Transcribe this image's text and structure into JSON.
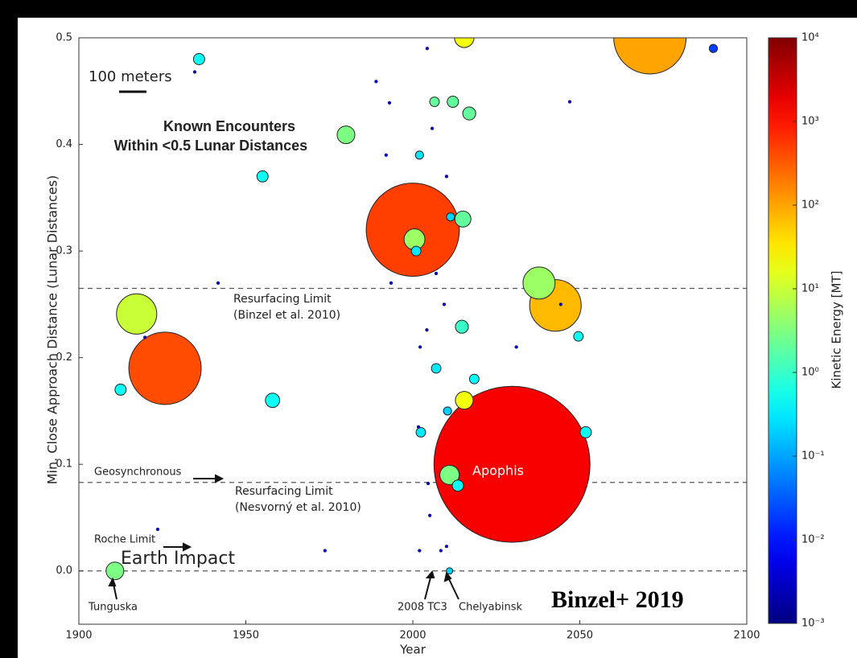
{
  "chart_data": {
    "type": "scatter",
    "x_label": "Year",
    "y_label": "Min. Close Approach Distance (Lunar Distances)",
    "colorbar_label": "Kinetic Energy [MT]",
    "xlim": [
      1900,
      2100
    ],
    "xticks": [
      1900,
      1950,
      2000,
      2050,
      2100
    ],
    "ylim": [
      -0.05,
      0.5
    ],
    "yticks": [
      {
        "value": 0,
        "label": "0.0"
      },
      0.1,
      0.2,
      0.3,
      0.4,
      0.5
    ],
    "clim": [
      0.001,
      10000
    ],
    "colorscale": "jet",
    "cticks": [
      {
        "value": 0.001,
        "label": "10⁻³"
      },
      {
        "value": 0.01,
        "label": "10⁻²"
      },
      {
        "value": 0.1,
        "label": "10⁻¹"
      },
      {
        "value": 1,
        "label": "10⁰"
      },
      {
        "value": 10,
        "label": "10¹"
      },
      {
        "value": 100,
        "label": "10²"
      },
      {
        "value": 1000,
        "label": "10³"
      },
      {
        "value": 10000,
        "label": "10⁴"
      }
    ],
    "hlines": [
      0.265,
      0.083,
      0
    ],
    "annotations": [
      "100 meters",
      "Known Encounters",
      "Within <0.5 Lunar Distances",
      "Resurfacing Limit",
      "(Binzel et al. 2010)",
      "Geosynchronous",
      "Resurfacing Limit",
      "(Nesvorný  et al. 2010)",
      "Roche Limit",
      "Earth Impact",
      "Tunguska",
      "2008 TC3",
      "Chelyabinsk",
      "Apophis",
      "Binzel+ 2019"
    ],
    "series": [
      {
        "x": [
          2029.7,
          2000,
          1925.8,
          2071,
          2042.7,
          2037.8,
          1917.3,
          2000.5,
          2015.4,
          2015.4,
          2011,
          1980,
          1910.8,
          2015,
          2012,
          2016.9,
          2006.5,
          1958,
          1912.5,
          1936,
          1955,
          2051.8,
          2002.4,
          2014.7,
          2018.4,
          2013.5,
          2049.6,
          2001,
          2011,
          2090,
          2007,
          2010.4,
          2002,
          2011.3,
          1934.7,
          1941.7,
          1923.6,
          1919.8,
          1973.7,
          1989,
          1993,
          1992,
          1993.5,
          2004.3,
          2044.3,
          2047,
          2031,
          2002,
          2008.4,
          2002.2,
          2004.2,
          2007,
          2009.4,
          2010.1,
          2005.8,
          2001.7,
          2004.6,
          2005.1,
          2010.1
        ],
        "values": [
          0.1,
          0.32,
          0.19,
          0.5,
          0.249,
          0.27,
          0.241,
          0.311,
          0.16,
          0.5,
          0.09,
          0.409,
          0,
          0.33,
          0.44,
          0.429,
          0.44,
          0.16,
          0.17,
          0.48,
          0.37,
          0.13,
          0.13,
          0.229,
          0.18,
          0.08,
          0.22,
          0.3,
          0,
          0.49,
          0.19,
          0.15,
          0.39,
          0.332,
          0.468,
          0.27,
          0.039,
          0.219,
          0.019,
          0.459,
          0.439,
          0.39,
          0.27,
          0.49,
          0.25,
          0.44,
          0.21,
          0.019,
          0.019,
          0.21,
          0.226,
          0.279,
          0.25,
          0.37,
          0.415,
          0.135,
          0.082,
          0.052,
          0.023
        ],
        "sizes": [
          554,
          331,
          257,
          257,
          183,
          114,
          143,
          74,
          63,
          69,
          69,
          63,
          63,
          57,
          40,
          46,
          34,
          51,
          40,
          40,
          40,
          40,
          34,
          46,
          34,
          40,
          34,
          34,
          23,
          29,
          34,
          29,
          29,
          29,
          11,
          11,
          11,
          11,
          11,
          11,
          11,
          11,
          11,
          11,
          11,
          11,
          11,
          11,
          11,
          11,
          11,
          11,
          11,
          11,
          11,
          11,
          11,
          11,
          11
        ],
        "energy": [
          1500,
          500,
          400,
          100,
          70,
          5,
          10,
          5,
          20,
          20,
          3,
          3,
          3,
          2,
          2,
          2,
          2,
          0.5,
          0.5,
          0.5,
          0.5,
          0.5,
          0.3,
          1,
          0.4,
          0.5,
          0.5,
          0.3,
          0.2,
          0.02,
          0.3,
          0.2,
          0.3,
          0.2,
          0.005,
          0.005,
          0.005,
          0.005,
          0.005,
          0.005,
          0.005,
          0.005,
          0.005,
          0.005,
          0.005,
          0.005,
          0.005,
          0.005,
          0.005,
          0.005,
          0.005,
          0.005,
          0.005,
          0.005,
          0.005,
          0.005,
          0.005,
          0.005,
          0.005
        ]
      }
    ]
  }
}
